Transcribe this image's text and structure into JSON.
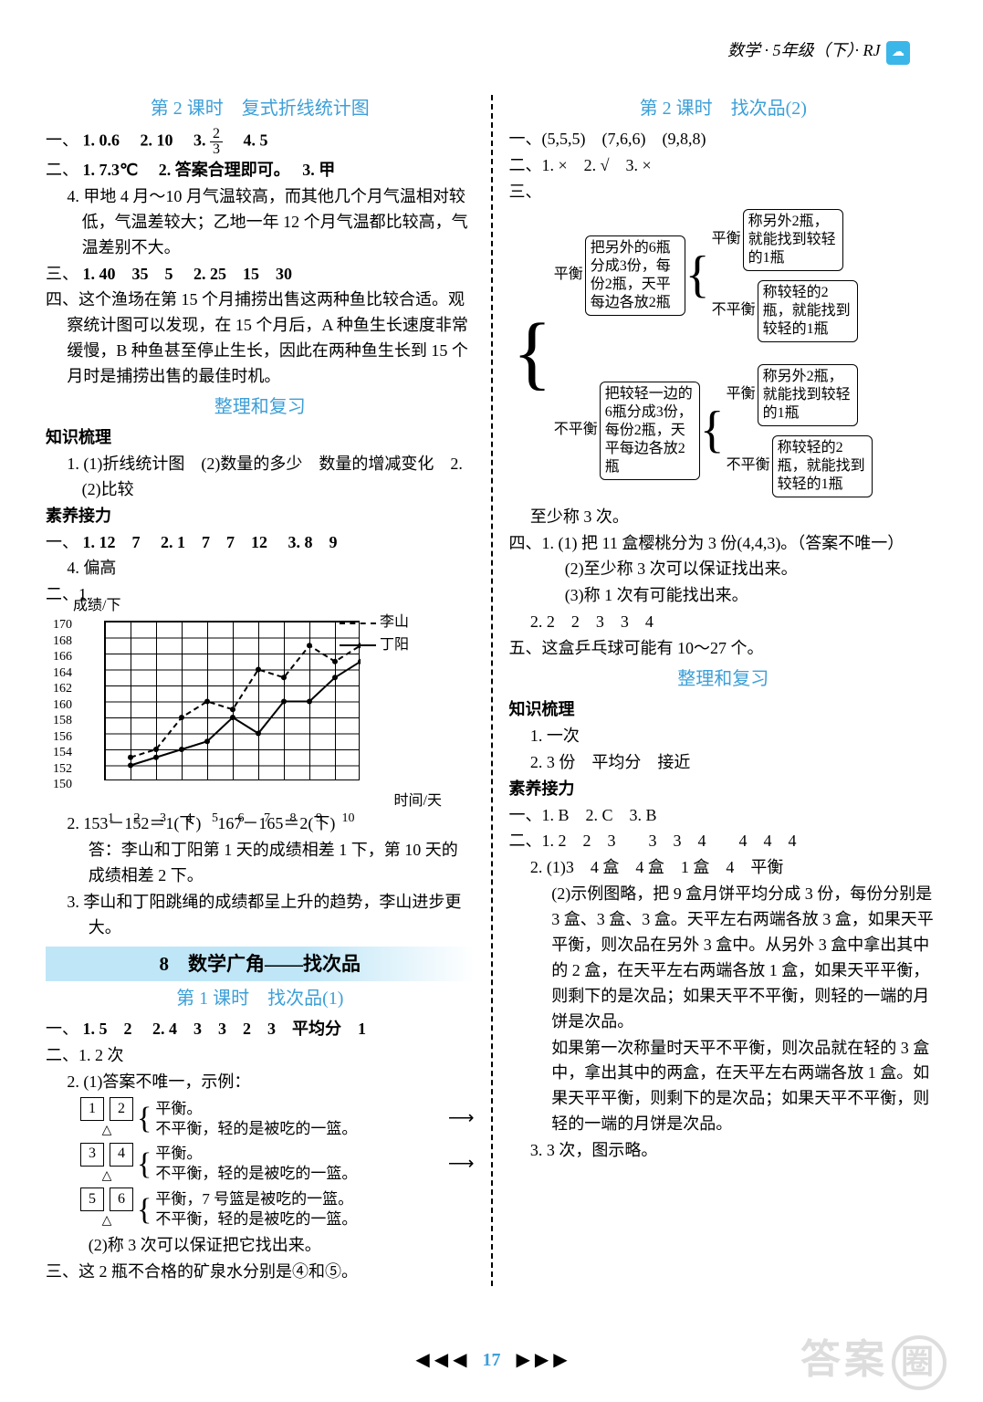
{
  "header": {
    "text": "数学 · 5年级（下）· RJ",
    "badge": "☁"
  },
  "left": {
    "lesson2_title": "第 2 课时　复式折线统计图",
    "s1": {
      "prefix": "一、",
      "i1": "1. 0.6",
      "i2": "2. 10",
      "i3a": "3. ",
      "i3n": "2",
      "i3d": "3",
      "i4": "4. 5"
    },
    "s2": {
      "prefix": "二、",
      "i1": "1. 7.3℃",
      "i2": "2. 答案合理即可。",
      "i3": "3. 甲",
      "i4": "4. 甲地 4 月～10 月气温较高，而其他几个月气温相对较低，气温差较大；乙地一年 12 个月气温都比较高，气温差别不大。"
    },
    "s3": {
      "prefix": "三、",
      "i1": "1. 40　35　5",
      "i2": "2. 25　15　30"
    },
    "s4": "四、这个渔场在第 15 个月捕捞出售这两种鱼比较合适。观察统计图可以发现，在 15 个月后，A 种鱼生长速度非常缓慢，B 种鱼甚至停止生长，因此在两种鱼生长到 15 个月时是捕捞出售的最佳时机。",
    "review_title": "整理和复习",
    "knowledge_h": "知识梳理",
    "k1": "1. (1)折线统计图　(2)数量的多少　数量的增减变化　2. (2)比较",
    "skill_h": "素养接力",
    "sk1": {
      "prefix": "一、",
      "i1": "1. 12　7",
      "i2": "2. 1　7　7　12",
      "i3": "3. 8　9",
      "i4": "4. 偏高"
    },
    "sk2_prefix": "二、1.",
    "chart": {
      "type": "line",
      "y_label": "成绩/下",
      "x_label": "时间/天",
      "legend": [
        {
          "name": "李山",
          "style": "dashed"
        },
        {
          "name": "丁阳",
          "style": "solid"
        }
      ],
      "y_ticks": [
        170,
        168,
        166,
        164,
        162,
        160,
        158,
        156,
        154,
        152,
        150
      ],
      "x_ticks": [
        1,
        2,
        3,
        4,
        5,
        6,
        7,
        8,
        9,
        10
      ],
      "ylim": [
        150,
        170
      ],
      "xlim": [
        1,
        10
      ],
      "grid_color": "#000000",
      "background_color": "#ffffff",
      "lishan": [
        153,
        154,
        158,
        160,
        159,
        164,
        163,
        167,
        165,
        167
      ],
      "dingyang": [
        152,
        153,
        154,
        155,
        158,
        156,
        160,
        160,
        163,
        165
      ],
      "line_width": 2,
      "marker": "dot",
      "marker_size": 4,
      "colors": {
        "lishan": "#000000",
        "dingyang": "#000000"
      }
    },
    "sk2_2a": "2. 153－152＝1(下)　167－165＝2(下)",
    "sk2_2b": "答：李山和丁阳第 1 天的成绩相差 1 下，第 10 天的成绩相差 2 下。",
    "sk2_3": "3. 李山和丁阳跳绳的成绩都呈上升的趋势，李山进步更大。",
    "chapter": "8　数学广角——找次品",
    "lesson1_title": "第 1 课时　找次品(1)",
    "c1_s1": {
      "prefix": "一、",
      "i1": "1. 5　2",
      "i2": "2. 4　3　3　2　3　平均分　1"
    },
    "c1_s2": "二、1. 2 次",
    "c1_s2_2": "2. (1)答案不唯一，示例：",
    "weigh": [
      {
        "a": "1",
        "b": "2",
        "bal": "平衡。",
        "unbal": "不平衡，轻的是被吃的一篮。"
      },
      {
        "a": "3",
        "b": "4",
        "bal": "平衡。",
        "unbal": "不平衡，轻的是被吃的一篮。"
      },
      {
        "a": "5",
        "b": "6",
        "bal": "平衡，7 号篮是被吃的一篮。",
        "unbal": "不平衡，轻的是被吃的一篮。"
      }
    ],
    "c1_s2_2b": "(2)称 3 次可以保证把它找出来。",
    "c1_s3": "三、这 2 瓶不合格的矿泉水分别是④和⑤。"
  },
  "right": {
    "lesson2_title": "第 2 课时　找次品(2)",
    "s1": "一、(5,5,5)　(7,6,6)　(9,8,8)",
    "s2": "二、1. ×　2. √　3. ×",
    "s3_prefix": "三、",
    "tree": {
      "root_box": "把另外的6瓶分成3份，每份2瓶，天平每边各放2瓶",
      "root_box2": "把较轻一边的6瓶分成3份，每份2瓶，天平每边各放2瓶",
      "leaf_a": "称另外2瓶，就能找到较轻的1瓶",
      "leaf_b": "称较轻的2瓶，就能找到较轻的1瓶",
      "bal": "平衡",
      "unbal": "不平衡",
      "colors": {
        "box_border": "#000000",
        "text": "#000000"
      }
    },
    "s3_tail": "至少称 3 次。",
    "s4_1": "四、1. (1) 把 11 盒樱桃分为 3 份(4,4,3)。（答案不唯一）",
    "s4_1b": "(2)至少称 3 次可以保证找出来。",
    "s4_1c": "(3)称 1 次有可能找出来。",
    "s4_2": "2. 2　2　3　3　4",
    "s5": "五、这盒乒乓球可能有 10～27 个。",
    "review_title": "整理和复习",
    "knowledge_h": "知识梳理",
    "k1": "1. 一次",
    "k2": "2. 3 份　平均分　接近",
    "skill_h": "素养接力",
    "sk1": "一、1. B　2. C　3. B",
    "sk2_1": "二、1. 2　2　3　　3　3　4　　4　4　4",
    "sk2_2a": "2. (1)3　4 盒　4 盒　1 盒　4　平衡",
    "sk2_2b": "(2)示例图略，把 9 盒月饼平均分成 3 份，每份分别是 3 盒、3 盒、3 盒。天平左右两端各放 3 盒，如果天平平衡，则次品在另外 3 盒中。从另外 3 盒中拿出其中的 2 盒，在天平左右两端各放 1 盒，如果天平平衡，则剩下的是次品；如果天平不平衡，则轻的一端的月饼是次品。",
    "sk2_2c": "如果第一次称量时天平不平衡，则次品就在轻的 3 盒中，拿出其中的两盒，在天平左右两端各放 1 盒。如果天平平衡，则剩下的是次品；如果天平不平衡，则轻的一端的月饼是次品。",
    "sk2_3": "3. 3 次，图示略。"
  },
  "footer": {
    "left": "◀ ◀ ◀",
    "page": "17",
    "right": "▶ ▶ ▶"
  },
  "watermark": "答案"
}
